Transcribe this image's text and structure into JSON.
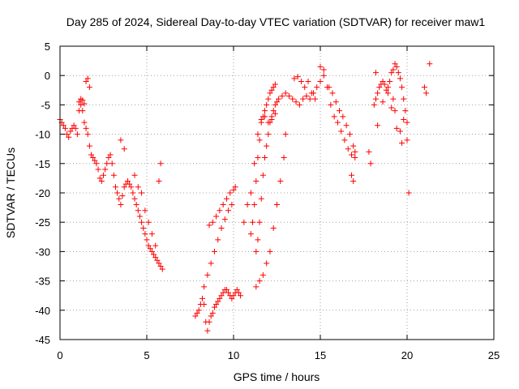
{
  "chart_data": {
    "type": "scatter",
    "title": "Day 285 of 2024, Sidereal Day-to-day VTEC variation (SDTVAR) for receiver maw1",
    "xlabel": "GPS time / hours",
    "ylabel": "SDTVAR / TECUs",
    "xlim": [
      0,
      25
    ],
    "ylim": [
      -45,
      5
    ],
    "xticks": [
      0,
      5,
      10,
      15,
      20,
      25
    ],
    "yticks": [
      5,
      0,
      -5,
      -10,
      -15,
      -20,
      -25,
      -30,
      -35,
      -40,
      -45
    ],
    "grid": true,
    "marker": "+",
    "series": [
      {
        "name": "maw1",
        "color": "#ff0000",
        "x": [
          0.0,
          0.1,
          0.2,
          0.3,
          0.4,
          0.5,
          0.6,
          0.7,
          0.8,
          0.9,
          1.0,
          1.1,
          1.2,
          1.3,
          1.4,
          1.5,
          1.6,
          1.7,
          1.8,
          1.9,
          2.0,
          2.1,
          2.2,
          2.3,
          2.4,
          2.5,
          2.6,
          2.7,
          2.8,
          2.9,
          3.0,
          3.1,
          3.2,
          3.3,
          3.4,
          3.5,
          3.6,
          3.7,
          3.8,
          3.9,
          4.0,
          4.1,
          4.2,
          4.3,
          4.4,
          4.5,
          4.6,
          4.7,
          4.8,
          4.9,
          5.0,
          5.1,
          5.2,
          5.3,
          5.4,
          5.5,
          5.6,
          5.7,
          5.8,
          5.9,
          1.1,
          1.2,
          1.3,
          1.4,
          1.5,
          1.6,
          1.7,
          3.5,
          3.7,
          4.3,
          4.5,
          4.7,
          4.9,
          5.1,
          5.3,
          5.5,
          5.7,
          5.8,
          7.8,
          7.9,
          8.0,
          8.1,
          8.2,
          8.3,
          8.4,
          8.5,
          8.6,
          8.7,
          8.8,
          8.9,
          9.0,
          9.1,
          9.2,
          9.3,
          9.4,
          9.5,
          9.6,
          9.7,
          9.8,
          9.9,
          10.0,
          10.1,
          10.2,
          10.3,
          10.4,
          8.3,
          8.5,
          8.7,
          8.9,
          9.1,
          9.3,
          9.5,
          9.7,
          9.9,
          8.6,
          8.8,
          9.0,
          9.2,
          9.4,
          9.6,
          9.8,
          10.0,
          10.1,
          10.6,
          10.8,
          11.0,
          11.2,
          11.4,
          11.6,
          11.8,
          12.0,
          12.2,
          12.4,
          11.0,
          11.1,
          11.2,
          11.3,
          11.4,
          11.5,
          11.6,
          11.7,
          11.8,
          11.9,
          12.0,
          12.1,
          12.2,
          12.3,
          12.4,
          11.3,
          11.5,
          11.7,
          11.9,
          12.1,
          12.3,
          12.5,
          12.7,
          12.9,
          13.0,
          11.3,
          11.4,
          11.5,
          11.6,
          11.7,
          11.8,
          11.9,
          12.0,
          12.1,
          12.2,
          12.3,
          12.4,
          12.5,
          12.6,
          12.8,
          13.0,
          13.2,
          13.4,
          13.6,
          13.8,
          14.0,
          14.2,
          14.4,
          14.6,
          14.8,
          15.0,
          15.2,
          15.4,
          15.6,
          15.8,
          16.0,
          16.2,
          16.4,
          16.6,
          16.8,
          17.0,
          13.5,
          13.7,
          13.9,
          14.1,
          14.3,
          14.5,
          14.7,
          15.0,
          15.2,
          15.5,
          15.7,
          15.9,
          16.1,
          16.3,
          16.5,
          16.7,
          16.9,
          17.0,
          18.1,
          18.2,
          18.3,
          18.4,
          18.5,
          18.6,
          18.7,
          18.8,
          18.9,
          19.0,
          19.1,
          19.2,
          19.3,
          19.4,
          19.5,
          19.6,
          19.7,
          19.8,
          19.9,
          20.0,
          20.0,
          19.2,
          19.3,
          18.3,
          18.6,
          18.9,
          19.1,
          19.4,
          19.6,
          19.8,
          19.7,
          18.2,
          21.0,
          21.1,
          21.3,
          16.8,
          16.9,
          17.8,
          17.9,
          20.1
        ],
        "y": [
          -7.5,
          -8.0,
          -8.5,
          -9.0,
          -10.0,
          -10.5,
          -9.5,
          -9.0,
          -8.5,
          -9.0,
          -10.0,
          -6.0,
          -5.0,
          -6.0,
          -8.0,
          -9.0,
          -10.0,
          -12.0,
          -13.5,
          -14.0,
          -14.5,
          -15.0,
          -16.0,
          -17.5,
          -18.0,
          -17.0,
          -16.0,
          -15.0,
          -14.0,
          -13.5,
          -15.0,
          -17.0,
          -19.0,
          -20.0,
          -21.0,
          -22.0,
          -20.5,
          -19.0,
          -18.5,
          -18.0,
          -18.5,
          -19.0,
          -20.0,
          -21.0,
          -22.0,
          -23.0,
          -24.0,
          -25.0,
          -26.0,
          -27.0,
          -28.0,
          -29.0,
          -29.5,
          -30.0,
          -30.5,
          -31.0,
          -31.5,
          -32.0,
          -32.5,
          -33.0,
          -4.5,
          -4.0,
          -4.2,
          -4.8,
          -1.0,
          -0.5,
          -2.0,
          -11.0,
          -12.5,
          -17.0,
          -19.0,
          -20.0,
          -23.0,
          -25.0,
          -27.0,
          -29.0,
          -18.0,
          -15.0,
          -41.0,
          -40.5,
          -40.0,
          -39.0,
          -38.0,
          -39.0,
          -42.0,
          -43.5,
          -42.0,
          -41.0,
          -40.5,
          -39.5,
          -39.0,
          -38.5,
          -38.0,
          -37.5,
          -37.0,
          -36.5,
          -36.5,
          -37.0,
          -37.5,
          -38.0,
          -37.5,
          -37.0,
          -36.5,
          -37.0,
          -37.5,
          -36.0,
          -34.0,
          -32.0,
          -30.0,
          -28.0,
          -26.0,
          -24.5,
          -23.0,
          -22.0,
          -25.5,
          -25.0,
          -24.0,
          -23.0,
          -22.0,
          -21.0,
          -20.0,
          -19.5,
          -19.0,
          -25.0,
          -22.0,
          -20.0,
          -15.0,
          -10.0,
          -7.5,
          -7.0,
          -8.0,
          -7.5,
          -6.5,
          -27.0,
          -25.0,
          -22.0,
          -18.0,
          -14.0,
          -11.0,
          -8.0,
          -7.0,
          -6.0,
          -5.0,
          -4.0,
          -3.0,
          -2.5,
          -2.0,
          -1.5,
          -36.0,
          -35.0,
          -34.0,
          -32.0,
          -30.0,
          -26.0,
          -22.0,
          -18.0,
          -14.0,
          -10.0,
          -30.0,
          -28.0,
          -25.0,
          -21.0,
          -17.0,
          -14.0,
          -12.0,
          -10.0,
          -8.0,
          -7.0,
          -6.0,
          -5.0,
          -4.5,
          -4.0,
          -3.5,
          -3.0,
          -3.5,
          -4.0,
          -4.5,
          -5.0,
          -4.0,
          -3.5,
          -4.0,
          -3.0,
          -2.0,
          -1.0,
          0.0,
          -2.0,
          -5.0,
          -7.0,
          -8.0,
          -9.5,
          -11.0,
          -12.5,
          -13.5,
          -14.0,
          -0.5,
          -0.2,
          -1.0,
          -2.0,
          -1.0,
          -3.0,
          -4.0,
          1.5,
          1.0,
          -2.0,
          -3.0,
          -4.5,
          -6.0,
          -7.0,
          -8.5,
          -10.0,
          -12.0,
          -13.0,
          -5.0,
          -4.0,
          -3.0,
          -2.0,
          -1.5,
          -1.0,
          -1.5,
          -2.5,
          -2.0,
          -1.0,
          0.5,
          1.0,
          2.0,
          1.5,
          0.5,
          -0.5,
          -2.0,
          -4.0,
          -6.0,
          -8.0,
          -11.0,
          -4.0,
          -6.0,
          -8.5,
          -4.5,
          -3.0,
          -5.5,
          -9.0,
          -9.5,
          -7.5,
          -11.5,
          0.5,
          -2.0,
          -3.0,
          2.0,
          -17.0,
          -18.0,
          -13.0,
          -15.0,
          -20.0
        ]
      }
    ]
  }
}
